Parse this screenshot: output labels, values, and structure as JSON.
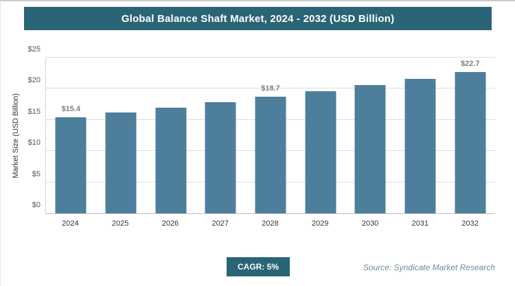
{
  "header": {
    "title": "Global Balance Shaft Market, 2024 - 2032 (USD Billion)"
  },
  "chart_data": {
    "type": "bar",
    "title": "Global Balance Shaft Market, 2024 - 2032 (USD Billion)",
    "categories": [
      "2024",
      "2025",
      "2026",
      "2027",
      "2028",
      "2029",
      "2030",
      "2031",
      "2032"
    ],
    "values": [
      15.4,
      16.2,
      17.0,
      17.8,
      18.7,
      19.6,
      20.6,
      21.6,
      22.7
    ],
    "data_labels": [
      "$15.4",
      "",
      "",
      "",
      "$18.7",
      "",
      "",
      "",
      "$22.7"
    ],
    "xlabel": "",
    "ylabel": "Market Size (USD Billion)",
    "ylim": [
      0,
      25
    ],
    "yticks": [
      "$0",
      "$5",
      "$10",
      "$15",
      "$20",
      "$25"
    ],
    "ytick_values": [
      0,
      5,
      10,
      15,
      20,
      25
    ],
    "grid": true,
    "legend": "none",
    "bar_color": "#4d7f9c"
  },
  "footer": {
    "cagr_label": "CAGR: 5%",
    "source": "Source: Syndicate Market Research"
  }
}
